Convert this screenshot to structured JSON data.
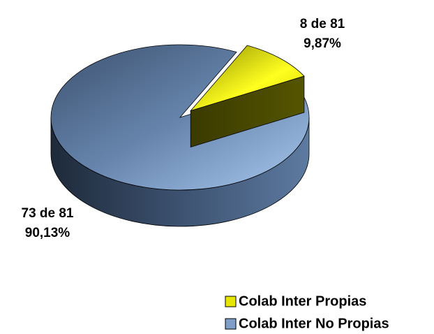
{
  "chart_data": {
    "type": "pie",
    "categories": [
      "Colab Inter Propias",
      "Colab Inter No Propias"
    ],
    "values": [
      8,
      73
    ],
    "value_labels": [
      [
        "8 de 81",
        "9,87%"
      ],
      [
        "73 de 81",
        "90,13%"
      ]
    ],
    "colors": [
      "#e6e600",
      "#7f9fc8"
    ],
    "legend": "bottom-right"
  }
}
